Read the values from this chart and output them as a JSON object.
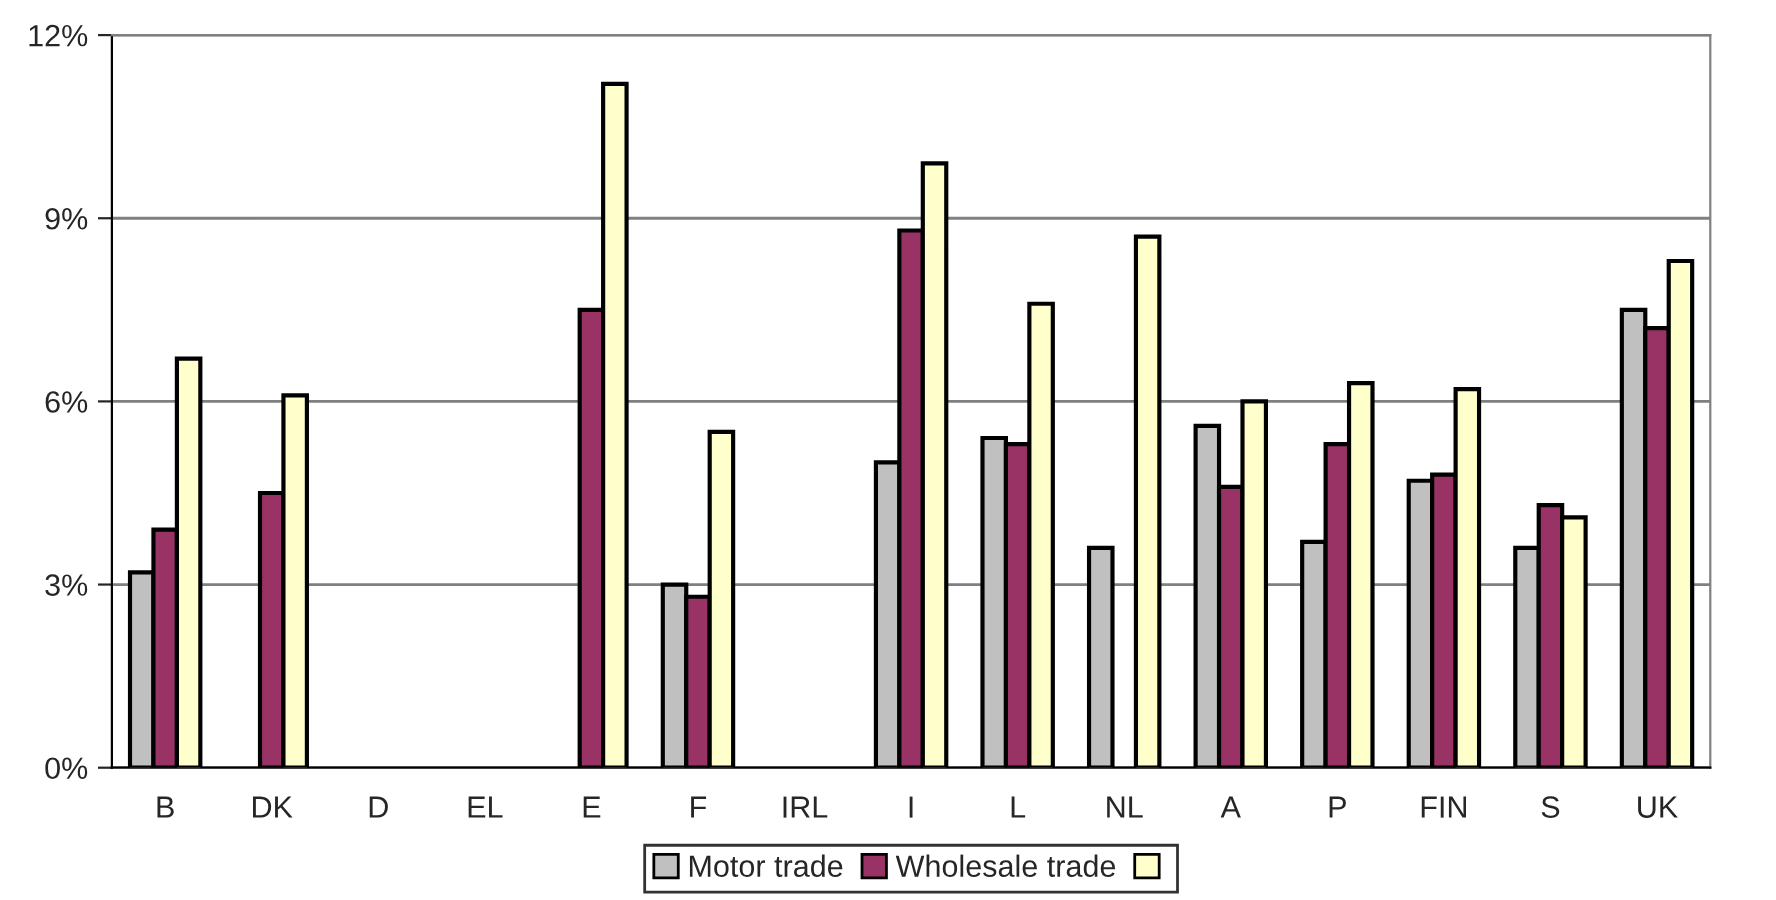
{
  "chart_data": {
    "type": "bar",
    "categories": [
      "B",
      "DK",
      "D",
      "EL",
      "E",
      "F",
      "IRL",
      "I",
      "L",
      "NL",
      "A",
      "P",
      "FIN",
      "S",
      "UK"
    ],
    "series": [
      {
        "name": "Motor trade",
        "color": "#c0c0c0",
        "values": [
          3.2,
          null,
          null,
          null,
          null,
          3.0,
          null,
          5.0,
          5.4,
          3.6,
          5.6,
          3.7,
          4.7,
          3.6,
          7.5
        ]
      },
      {
        "name": "Wholesale trade",
        "color": "#993366",
        "values": [
          3.9,
          4.5,
          null,
          null,
          7.5,
          2.8,
          null,
          8.8,
          5.3,
          null,
          4.6,
          5.3,
          4.8,
          4.3,
          7.2
        ]
      },
      {
        "color": "#ffffcc",
        "values": [
          6.7,
          6.1,
          null,
          null,
          11.2,
          5.5,
          null,
          9.9,
          7.6,
          8.7,
          6.0,
          6.3,
          6.2,
          4.1,
          8.3
        ]
      }
    ],
    "ylim": [
      0,
      12
    ],
    "yticks": [
      {
        "value": 0,
        "label": "0%"
      },
      {
        "value": 3,
        "label": "3%"
      },
      {
        "value": 6,
        "label": "6%"
      },
      {
        "value": 9,
        "label": "9%"
      },
      {
        "value": 12,
        "label": "12%"
      }
    ],
    "grid": "y",
    "legend": "bottom"
  }
}
